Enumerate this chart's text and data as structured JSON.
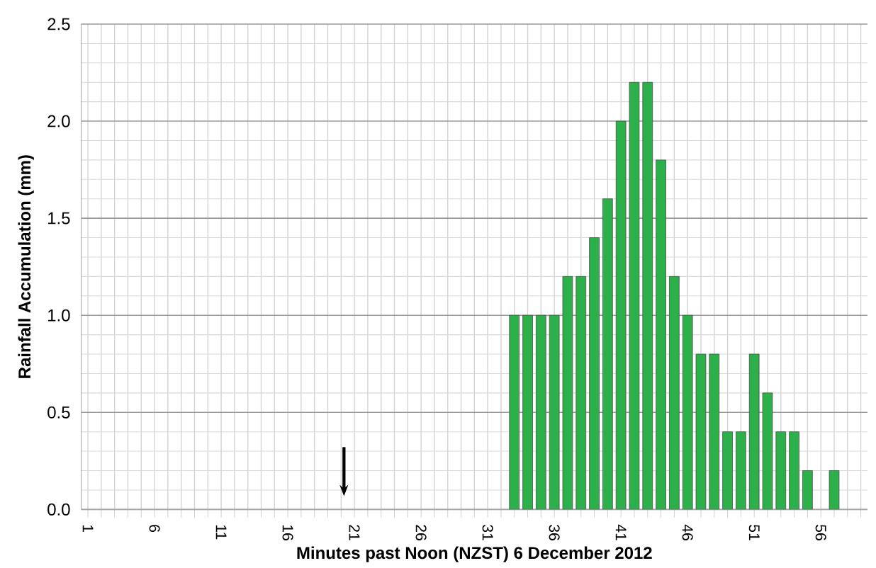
{
  "chart_data": {
    "type": "bar",
    "xlabel": "Minutes past Noon (NZST) 6 December 2012",
    "ylabel": "Rainfall Accumulation (mm)",
    "categories": [
      "1",
      null,
      null,
      null,
      null,
      "6",
      null,
      null,
      null,
      null,
      "11",
      null,
      null,
      null,
      null,
      "16",
      null,
      null,
      null,
      null,
      "21",
      null,
      null,
      null,
      null,
      "26",
      null,
      null,
      null,
      null,
      "31",
      null,
      null,
      null,
      null,
      "36",
      null,
      null,
      null,
      null,
      "41",
      null,
      null,
      null,
      null,
      "46",
      null,
      null,
      null,
      null,
      "51",
      null,
      null,
      null,
      null,
      "56",
      null,
      null,
      null
    ],
    "values": [
      null,
      null,
      null,
      null,
      null,
      null,
      null,
      null,
      null,
      null,
      null,
      null,
      null,
      null,
      null,
      null,
      null,
      null,
      null,
      null,
      null,
      null,
      null,
      null,
      null,
      null,
      null,
      null,
      null,
      null,
      null,
      null,
      1.0,
      1.0,
      1.0,
      1.0,
      1.2,
      1.2,
      1.4,
      1.6,
      2.0,
      2.2,
      2.2,
      1.8,
      1.2,
      1.0,
      0.8,
      0.8,
      0.4,
      0.4,
      0.8,
      0.6,
      0.4,
      0.4,
      0.2,
      null,
      0.2,
      null,
      null
    ],
    "color": "#2bb04a",
    "ylim": [
      0,
      2.5
    ],
    "yticks": [
      {
        "value": 0,
        "label": "0.0"
      },
      {
        "value": 0.5,
        "label": "0.5"
      },
      {
        "value": 1,
        "label": "1.0"
      },
      {
        "value": 1.5,
        "label": "1.5"
      },
      {
        "value": 2,
        "label": "2.0"
      },
      {
        "value": 2.5,
        "label": "2.5"
      }
    ],
    "grid": true
  }
}
